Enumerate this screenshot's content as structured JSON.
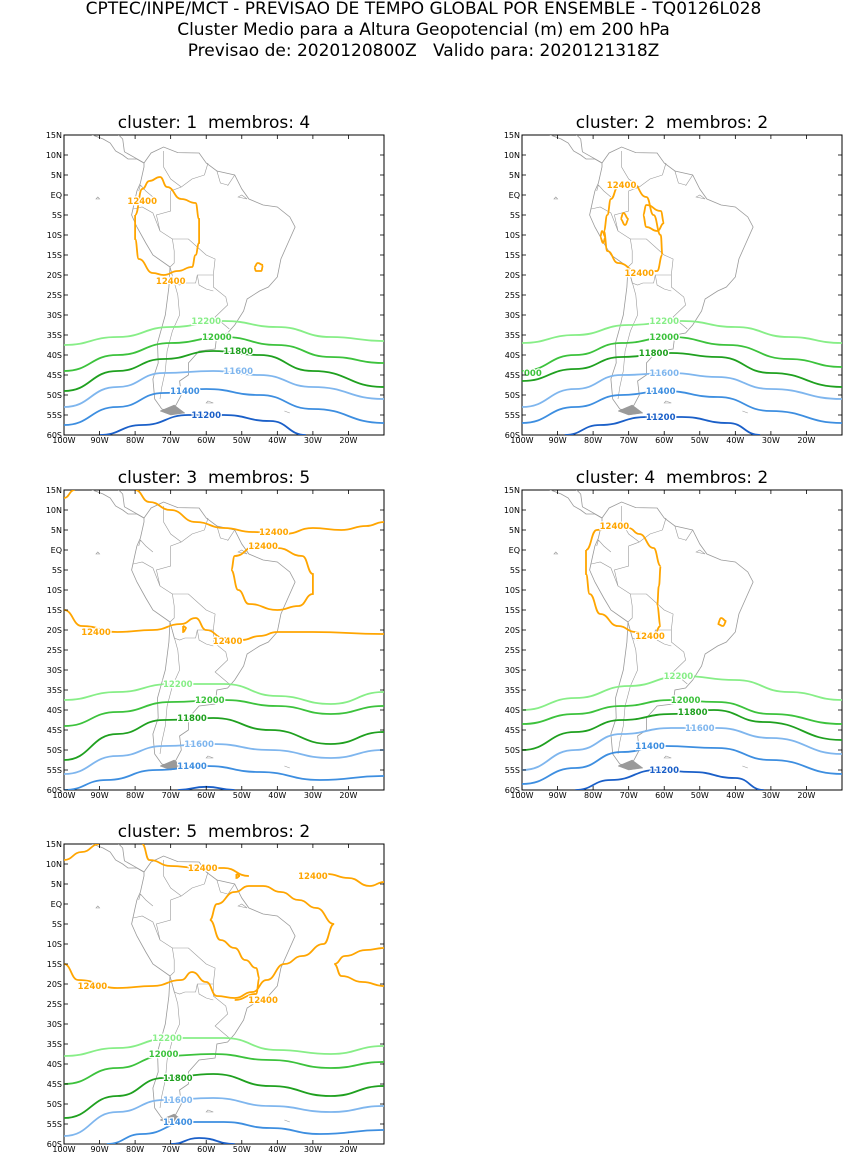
{
  "header": {
    "line1": "CPTEC/INPE/MCT - PREVISAO DE TEMPO GLOBAL POR ENSEMBLE - TQ0126L028",
    "line2": "Cluster Medio para a Altura Geopotencial (m) em 200 hPa",
    "line3_left": "Previsao de: 2020120800Z",
    "line3_right": "Valido para: 2020121318Z"
  },
  "axes": {
    "lat_labels": [
      "15N",
      "10N",
      "5N",
      "EQ",
      "5S",
      "10S",
      "15S",
      "20S",
      "25S",
      "30S",
      "35S",
      "40S",
      "45S",
      "50S",
      "55S",
      "60S"
    ],
    "lon_labels": [
      "100W",
      "90W",
      "80W",
      "70W",
      "60W",
      "50W",
      "40W",
      "30W",
      "20W"
    ]
  },
  "colors": {
    "12400": "#ffa500",
    "12200": "#87ee87",
    "12000": "#3cc23c",
    "11800": "#1fa01f",
    "11600": "#7fb6ee",
    "11400": "#3d8ee0",
    "11200": "#1a5fc8",
    "coast": "#9a9a9a"
  },
  "panels": [
    {
      "title": "cluster: 1",
      "subtitle": "membros: 4",
      "contours": [
        {
          "level": 12400,
          "label": "12400"
        },
        {
          "level": 12200,
          "label": "12200"
        },
        {
          "level": 12000,
          "label": "12000"
        },
        {
          "level": 11800,
          "label": "11800"
        },
        {
          "level": 11600,
          "label": "11600"
        },
        {
          "level": 11400,
          "label": "11400"
        },
        {
          "level": 11200,
          "label": "11200"
        }
      ]
    },
    {
      "title": "cluster: 2",
      "subtitle": "membros: 2",
      "contours": [
        {
          "level": 12400,
          "label": "12400"
        },
        {
          "level": 12200,
          "label": "12200"
        },
        {
          "level": 12000,
          "label": "12000"
        },
        {
          "level": 11800,
          "label": "11800"
        },
        {
          "level": 11600,
          "label": "11600"
        },
        {
          "level": 11400,
          "label": "11400"
        },
        {
          "level": 11200,
          "label": "11200"
        },
        {
          "level": 12000,
          "label": "000"
        }
      ]
    },
    {
      "title": "cluster: 3",
      "subtitle": "membros: 5",
      "contours": [
        {
          "level": 12400,
          "label": "12400"
        },
        {
          "level": 12200,
          "label": "12200"
        },
        {
          "level": 12000,
          "label": "12000"
        },
        {
          "level": 11800,
          "label": "11800"
        },
        {
          "level": 11600,
          "label": "11600"
        },
        {
          "level": 11400,
          "label": "11400"
        }
      ]
    },
    {
      "title": "cluster: 4",
      "subtitle": "membros: 2",
      "contours": [
        {
          "level": 12400,
          "label": "12400"
        },
        {
          "level": 12200,
          "label": "12200"
        },
        {
          "level": 12000,
          "label": "12000"
        },
        {
          "level": 11800,
          "label": "11800"
        },
        {
          "level": 11600,
          "label": "11600"
        },
        {
          "level": 11400,
          "label": "11400"
        },
        {
          "level": 11200,
          "label": "11200"
        }
      ]
    },
    {
      "title": "cluster: 5",
      "subtitle": "membros: 2",
      "contours": [
        {
          "level": 12400,
          "label": "12400"
        },
        {
          "level": 12200,
          "label": "12200"
        },
        {
          "level": 12000,
          "label": "12000"
        },
        {
          "level": 11800,
          "label": "11800"
        },
        {
          "level": 11600,
          "label": "11600"
        },
        {
          "level": 11400,
          "label": "11400"
        }
      ]
    }
  ]
}
